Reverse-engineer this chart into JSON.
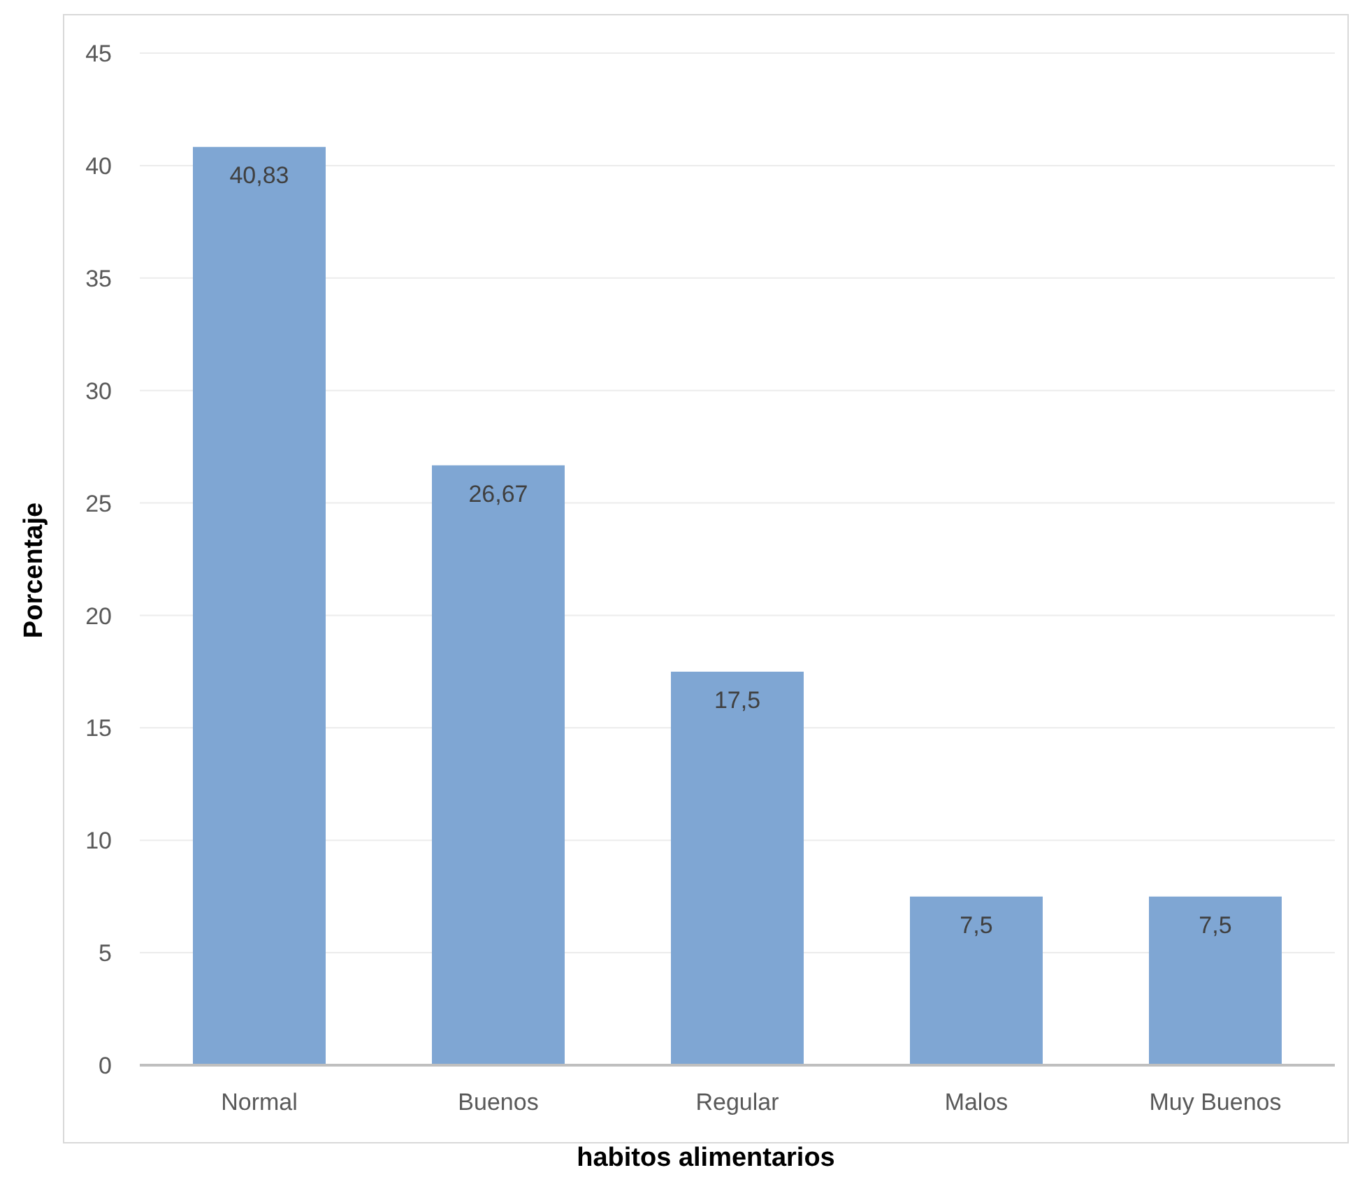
{
  "chart_data": {
    "type": "bar",
    "xlabel": "habitos alimentarios",
    "ylabel": "Porcentaje",
    "categories": [
      "Normal",
      "Buenos",
      "Regular",
      "Malos",
      "Muy Buenos"
    ],
    "values": [
      40.83,
      26.67,
      17.5,
      7.5,
      7.5
    ],
    "value_labels": [
      "40,83",
      "26,67",
      "17,5",
      "7,5",
      "7,5"
    ],
    "color": "#7fa6d3",
    "ylim": [
      0,
      45
    ],
    "yticks": [
      0,
      5,
      10,
      15,
      20,
      25,
      30,
      35,
      40,
      45
    ],
    "grid": "y",
    "legend": false
  }
}
